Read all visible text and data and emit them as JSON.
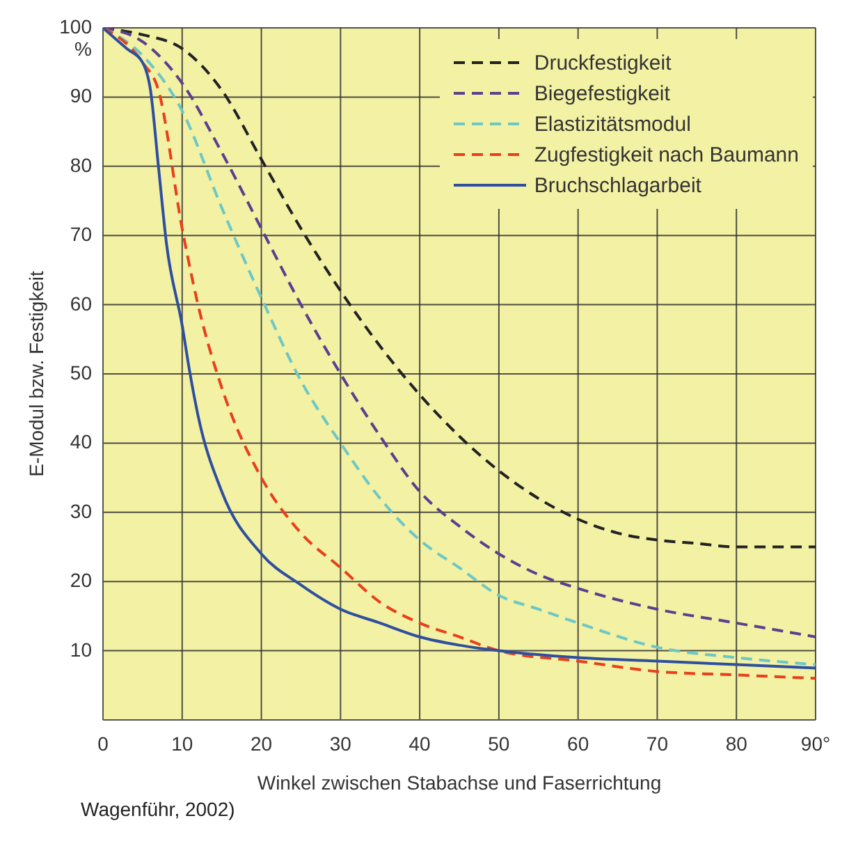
{
  "chart_data": {
    "type": "line",
    "xlabel": "Winkel zwischen Stabachse und Faserrichtung",
    "ylabel": "E-Modul bzw. Festigkeit",
    "annotations": [
      "Wagenführ, 2002)"
    ],
    "xlim": [
      0,
      90
    ],
    "xticks": [
      0,
      10,
      20,
      30,
      40,
      50,
      60,
      70,
      80,
      {
        "value": 90,
        "label": "90°"
      }
    ],
    "ylim": [
      0,
      100
    ],
    "yticks": [
      10,
      20,
      30,
      40,
      50,
      60,
      70,
      80,
      90,
      {
        "value": 100,
        "label": "100\n%"
      }
    ],
    "grid": true,
    "legend": "top right",
    "marker": "none",
    "series": [
      {
        "name": "Druckfestigkeit",
        "color": "#222222",
        "line_style": "dashed",
        "x": [
          0,
          5,
          10,
          15,
          20,
          25,
          30,
          35,
          40,
          45,
          50,
          55,
          60,
          65,
          70,
          75,
          80,
          90
        ],
        "values": [
          100,
          99,
          97,
          91,
          81,
          71,
          62,
          54,
          47,
          41,
          36,
          32,
          29,
          27,
          26,
          25.5,
          25,
          25
        ]
      },
      {
        "name": "Biegefestigkeit",
        "color": "#5b3f8f",
        "line_style": "dashed",
        "x": [
          0,
          5,
          10,
          15,
          20,
          25,
          30,
          35,
          40,
          45,
          50,
          55,
          60,
          70,
          80,
          90
        ],
        "values": [
          100,
          98,
          92,
          82,
          71,
          60,
          50,
          41,
          33,
          28,
          24,
          21,
          19,
          16,
          14,
          12
        ]
      },
      {
        "name": "Elastizitätsmodul",
        "color": "#6cc7c7",
        "line_style": "dashed",
        "x": [
          0,
          5,
          10,
          15,
          20,
          25,
          30,
          35,
          40,
          45,
          50,
          55,
          60,
          70,
          80,
          90
        ],
        "values": [
          100,
          96,
          88,
          74,
          61,
          49,
          40,
          32,
          26,
          22,
          18,
          16,
          14,
          10.5,
          9,
          8
        ]
      },
      {
        "name": "Zugfestigkeit nach Baumann",
        "color": "#e8401c",
        "line_style": "dashed",
        "x": [
          0,
          5,
          7,
          10,
          12,
          15,
          20,
          25,
          30,
          35,
          40,
          45,
          50,
          60,
          70,
          80,
          90
        ],
        "values": [
          100,
          95,
          91,
          71,
          60,
          48,
          35,
          27,
          22,
          17,
          14,
          12,
          10,
          8.5,
          7,
          6.5,
          6
        ]
      },
      {
        "name": "Bruchschlagarbeit",
        "color": "#2e4fa0",
        "line_style": "solid",
        "x": [
          0,
          3,
          5,
          6,
          7,
          8,
          10,
          11,
          12,
          15,
          20,
          25,
          30,
          35,
          40,
          45,
          50,
          60,
          70,
          80,
          90
        ],
        "values": [
          100,
          97,
          95,
          91,
          80,
          69,
          57,
          50,
          44,
          33,
          24,
          19.5,
          16,
          14,
          12,
          10.8,
          10,
          9,
          8.5,
          8,
          7.5
        ]
      }
    ]
  }
}
